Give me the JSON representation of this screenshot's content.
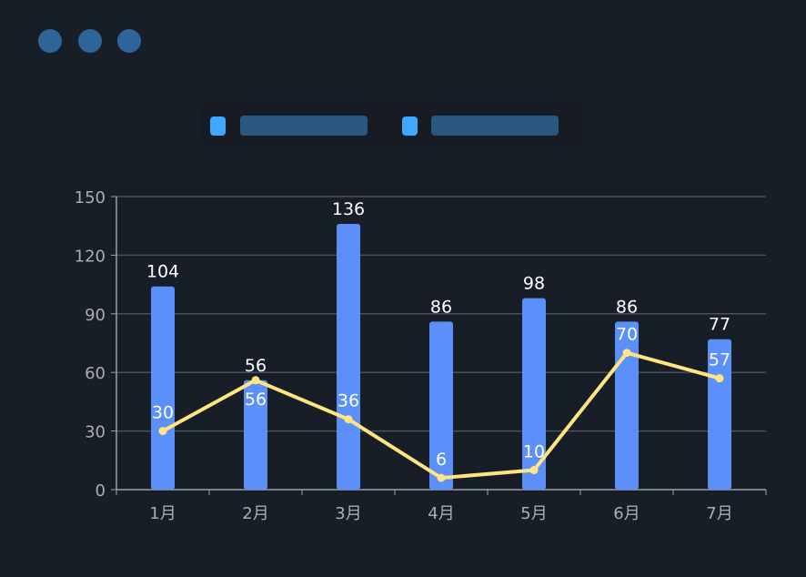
{
  "window_dots": 3,
  "legend": {
    "swatch_color": "#3fa7ff",
    "placeholder_color": "#2b5880",
    "items": 2
  },
  "chart_data": {
    "type": "bar+line",
    "categories": [
      "1月",
      "2月",
      "3月",
      "4月",
      "5月",
      "6月",
      "7月"
    ],
    "series": [
      {
        "type": "bar",
        "values": [
          104,
          56,
          136,
          86,
          98,
          86,
          77
        ],
        "color": "#5b8ff9"
      },
      {
        "type": "line",
        "values": [
          30,
          56,
          36,
          6,
          10,
          70,
          57
        ],
        "color": "#ffe480"
      }
    ],
    "ylim": [
      0,
      150
    ],
    "yticks": [
      0,
      30,
      60,
      90,
      120,
      150
    ],
    "grid": true,
    "data_labels": true,
    "legend_position": "top"
  }
}
